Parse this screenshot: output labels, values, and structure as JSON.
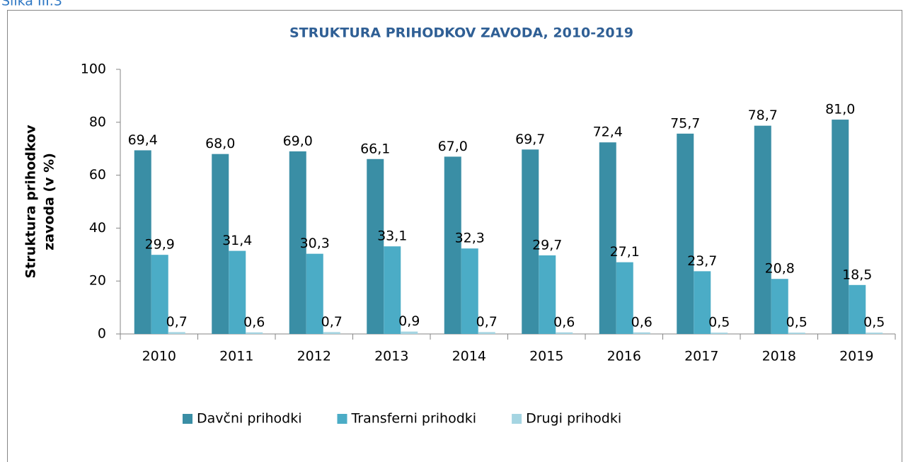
{
  "caption": "Slika III.3",
  "chart_data": {
    "type": "bar",
    "title": "STRUKTURA PRIHODKOV ZAVODA, 2010-2019",
    "y_label": [
      "Struktura prihodkov",
      "zavoda (v %)"
    ],
    "categories": [
      "2010",
      "2011",
      "2012",
      "2013",
      "2014",
      "2015",
      "2016",
      "2017",
      "2018",
      "2019"
    ],
    "series": [
      {
        "name": "Davčni prihodki",
        "color": "#3a8ea5",
        "values": [
          69.4,
          68.0,
          69.0,
          66.1,
          67.0,
          69.7,
          72.4,
          75.7,
          78.7,
          81.0
        ],
        "value_labels": [
          "69,4",
          "68,0",
          "69,0",
          "66,1",
          "67,0",
          "69,7",
          "72,4",
          "75,7",
          "78,7",
          "81,0"
        ]
      },
      {
        "name": "Transferni prihodki",
        "color": "#4bacc6",
        "values": [
          29.9,
          31.4,
          30.3,
          33.1,
          32.3,
          29.7,
          27.1,
          23.7,
          20.8,
          18.5
        ],
        "value_labels": [
          "29,9",
          "31,4",
          "30,3",
          "33,1",
          "32,3",
          "29,7",
          "27,1",
          "23,7",
          "20,8",
          "18,5"
        ]
      },
      {
        "name": "Drugi prihodki",
        "color": "#a5d5e2",
        "values": [
          0.7,
          0.6,
          0.7,
          0.9,
          0.7,
          0.6,
          0.6,
          0.5,
          0.5,
          0.5
        ],
        "value_labels": [
          "0,7",
          "0,6",
          "0,7",
          "0,9",
          "0,7",
          "0,6",
          "0,6",
          "0,5",
          "0,5",
          "0,5"
        ]
      }
    ],
    "ylim": [
      0,
      100
    ],
    "yticks": [
      0,
      20,
      40,
      60,
      80,
      100
    ],
    "grid": false,
    "legend": "bottom"
  }
}
